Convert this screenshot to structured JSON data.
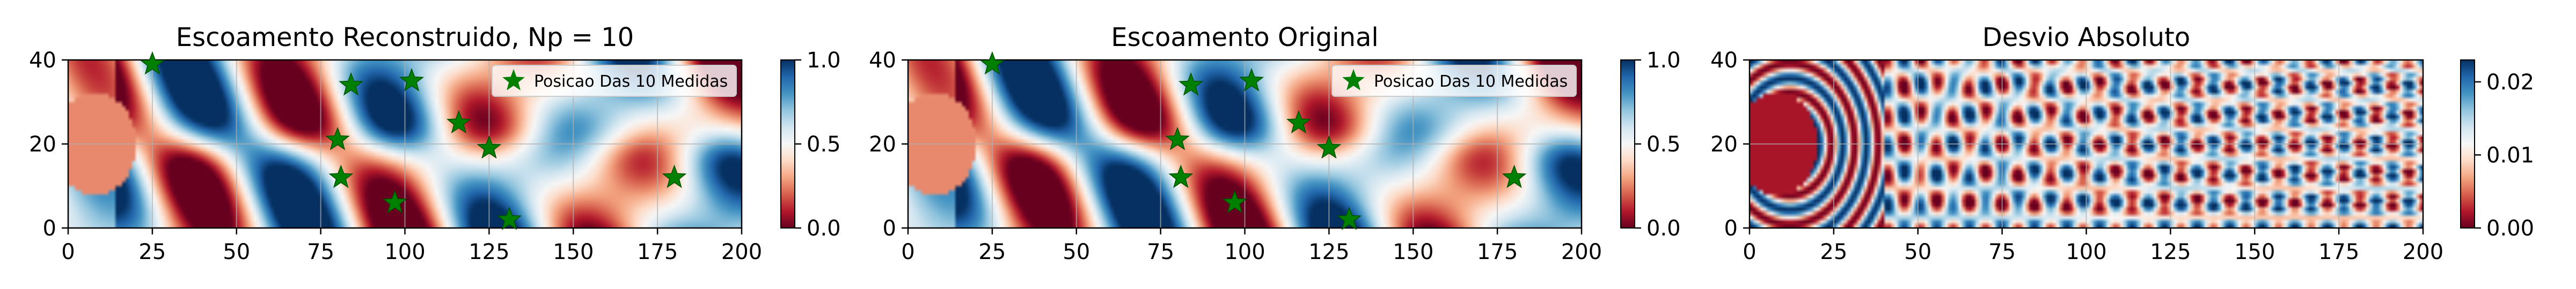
{
  "chart_data": [
    {
      "type": "heatmap",
      "title": "Escoamento Reconstruido, Np = 10",
      "xlim": [
        0,
        200
      ],
      "ylim": [
        0,
        40
      ],
      "xticks": [
        "0",
        "25",
        "50",
        "75",
        "100",
        "125",
        "150",
        "175",
        "200"
      ],
      "yticks": [
        "0",
        "20",
        "40"
      ],
      "colorbar": {
        "min": 0.0,
        "max": 1.0,
        "ticks": [
          "0.0",
          "0.5",
          "1.0"
        ],
        "colormap": "RdBu"
      },
      "field": "reconstructed",
      "grid": true,
      "legend": {
        "label": "Posicao Das 10 Medidas",
        "placement": "upper right",
        "marker_color": "#008000"
      },
      "points": [
        [
          25,
          39
        ],
        [
          84,
          34
        ],
        [
          102,
          35
        ],
        [
          80,
          21
        ],
        [
          116,
          25
        ],
        [
          81,
          12
        ],
        [
          125,
          19
        ],
        [
          97,
          6
        ],
        [
          131,
          2
        ],
        [
          180,
          12
        ]
      ]
    },
    {
      "type": "heatmap",
      "title": "Escoamento Original",
      "xlim": [
        0,
        200
      ],
      "ylim": [
        0,
        40
      ],
      "xticks": [
        "0",
        "25",
        "50",
        "75",
        "100",
        "125",
        "150",
        "175",
        "200"
      ],
      "yticks": [
        "0",
        "20",
        "40"
      ],
      "colorbar": {
        "min": 0.0,
        "max": 1.0,
        "ticks": [
          "0.0",
          "0.5",
          "1.0"
        ],
        "colormap": "RdBu"
      },
      "field": "original",
      "grid": true,
      "legend": {
        "label": "Posicao Das 10 Medidas",
        "placement": "upper right",
        "marker_color": "#008000"
      },
      "points": [
        [
          25,
          39
        ],
        [
          84,
          34
        ],
        [
          102,
          35
        ],
        [
          80,
          21
        ],
        [
          116,
          25
        ],
        [
          81,
          12
        ],
        [
          125,
          19
        ],
        [
          97,
          6
        ],
        [
          131,
          2
        ],
        [
          180,
          12
        ]
      ]
    },
    {
      "type": "heatmap",
      "title": "Desvio Absoluto",
      "xlim": [
        0,
        200
      ],
      "ylim": [
        0,
        40
      ],
      "xticks": [
        "0",
        "25",
        "50",
        "75",
        "100",
        "125",
        "150",
        "175",
        "200"
      ],
      "yticks": [
        "0",
        "20",
        "40"
      ],
      "colorbar": {
        "min": 0.0,
        "max": 0.023,
        "ticks": [
          "0.00",
          "0.01",
          "0.02"
        ],
        "colormap": "RdBu"
      },
      "field": "deviation",
      "grid": true
    }
  ]
}
